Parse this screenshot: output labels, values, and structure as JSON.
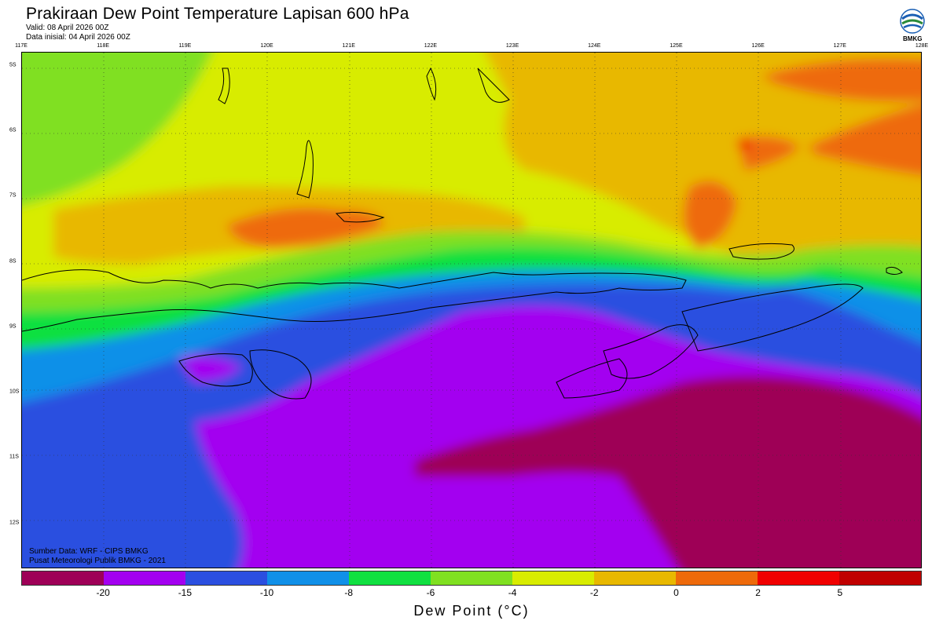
{
  "header": {
    "title": "Prakiraan Dew Point Temperature Lapisan 600 hPa",
    "valid": "Valid: 08 April 2026 00Z",
    "init": "Data inisial: 04 April 2026 00Z"
  },
  "logo": {
    "text": "BMKG",
    "icon": "bmkg-logo-icon"
  },
  "map": {
    "lon_labels": [
      "117E",
      "118E",
      "119E",
      "120E",
      "121E",
      "122E",
      "123E",
      "124E",
      "125E",
      "126E",
      "127E",
      "128E"
    ],
    "lat_labels": [
      "5S",
      "6S",
      "7S",
      "8S",
      "9S",
      "10S",
      "11S",
      "12S"
    ],
    "lon_range": [
      117,
      128
    ],
    "lat_range": [
      -4.8,
      -12.7
    ],
    "gridlines": true
  },
  "credits": {
    "source": "Sumber Data: WRF - CIPS BMKG",
    "org": "Pusat Meteorologi Publik BMKG - 2021"
  },
  "colorbar": {
    "colors": [
      "#9e0057",
      "#a300f0",
      "#2b4fe0",
      "#1090e8",
      "#10e040",
      "#80e020",
      "#d8ec00",
      "#e8b800",
      "#ee6a0a",
      "#f00000",
      "#c00000"
    ],
    "tick_labels": [
      "-20",
      "-15",
      "-10",
      "-8",
      "-6",
      "-4",
      "-2",
      "0",
      "2",
      "5"
    ],
    "title": "Dew Point (°C)"
  }
}
